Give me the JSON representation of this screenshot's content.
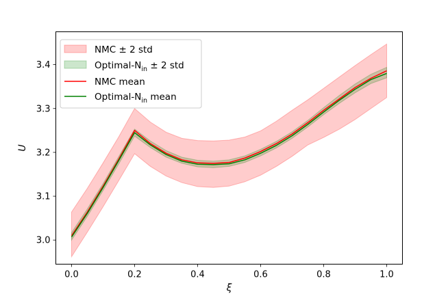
{
  "chart_data": {
    "type": "line",
    "xlabel": "ξ",
    "ylabel": "U",
    "xlim": [
      -0.05,
      1.05
    ],
    "ylim": [
      2.945,
      3.475
    ],
    "xticks": [
      0.0,
      0.2,
      0.4,
      0.6,
      0.8,
      1.0
    ],
    "xtick_labels": [
      "0.0",
      "0.2",
      "0.4",
      "0.6",
      "0.8",
      "1.0"
    ],
    "yticks": [
      3.0,
      3.1,
      3.2,
      3.3,
      3.4
    ],
    "ytick_labels": [
      "3.0",
      "3.1",
      "3.2",
      "3.3",
      "3.4"
    ],
    "grid": false,
    "legend_position": "top-left",
    "x": [
      0.0,
      0.05,
      0.1,
      0.15,
      0.2,
      0.25,
      0.3,
      0.35,
      0.4,
      0.45,
      0.5,
      0.55,
      0.6,
      0.65,
      0.7,
      0.75,
      0.8,
      0.85,
      0.9,
      0.95,
      1.0
    ],
    "series": [
      {
        "name": "NMC ± 2 std",
        "kind": "band",
        "color": "#ff0000",
        "lower": [
          2.962,
          3.018,
          3.076,
          3.136,
          3.197,
          3.168,
          3.146,
          3.131,
          3.122,
          3.12,
          3.123,
          3.133,
          3.148,
          3.168,
          3.191,
          3.217,
          3.234,
          3.253,
          3.275,
          3.3,
          3.325
        ],
        "upper": [
          3.064,
          3.118,
          3.176,
          3.236,
          3.3,
          3.269,
          3.246,
          3.232,
          3.227,
          3.226,
          3.228,
          3.235,
          3.249,
          3.271,
          3.296,
          3.32,
          3.346,
          3.372,
          3.398,
          3.423,
          3.447
        ]
      },
      {
        "name": "Optimal-N_in ± 2 std",
        "kind": "band",
        "color": "#008000",
        "lower": [
          3.0,
          3.054,
          3.113,
          3.174,
          3.237,
          3.211,
          3.189,
          3.175,
          3.167,
          3.165,
          3.168,
          3.177,
          3.192,
          3.21,
          3.232,
          3.258,
          3.286,
          3.312,
          3.336,
          3.357,
          3.37
        ],
        "upper": [
          3.017,
          3.071,
          3.129,
          3.191,
          3.253,
          3.226,
          3.204,
          3.189,
          3.182,
          3.18,
          3.183,
          3.192,
          3.207,
          3.225,
          3.247,
          3.273,
          3.302,
          3.33,
          3.356,
          3.378,
          3.394
        ]
      },
      {
        "name": "NMC mean",
        "kind": "line",
        "color": "#ff0000",
        "values": [
          3.01,
          3.064,
          3.123,
          3.185,
          3.25,
          3.22,
          3.198,
          3.183,
          3.176,
          3.175,
          3.177,
          3.187,
          3.202,
          3.22,
          3.242,
          3.268,
          3.296,
          3.322,
          3.348,
          3.369,
          3.386
        ]
      },
      {
        "name": "Optimal-N_in mean",
        "kind": "line",
        "color": "#008000",
        "values": [
          3.007,
          3.061,
          3.12,
          3.182,
          3.245,
          3.217,
          3.195,
          3.18,
          3.173,
          3.172,
          3.174,
          3.183,
          3.198,
          3.216,
          3.238,
          3.264,
          3.292,
          3.319,
          3.344,
          3.366,
          3.38
        ]
      }
    ]
  },
  "legend": {
    "items": [
      {
        "base": "NMC",
        "sub": "",
        "suffix": " ± 2 std"
      },
      {
        "base": "Optimal-N",
        "sub": "in",
        "suffix": " ± 2 std"
      },
      {
        "base": "NMC mean",
        "sub": "",
        "suffix": ""
      },
      {
        "base": "Optimal-N",
        "sub": "in",
        "suffix": " mean"
      }
    ]
  }
}
